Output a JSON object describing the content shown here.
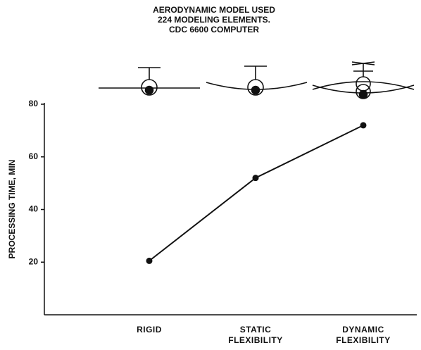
{
  "chart_data": {
    "type": "line",
    "title": [
      "AERODYNAMIC MODEL USED",
      "224 MODELING ELEMENTS.",
      "CDC 6600 COMPUTER"
    ],
    "y_label": "PROCESSING TIME, MIN",
    "categories": [
      "RIGID",
      "STATIC FLEXIBILITY",
      "DYNAMIC FLEXIBILITY"
    ],
    "values": [
      20.5,
      52,
      72
    ],
    "color": "#111111",
    "ylim": [
      0,
      80
    ],
    "yticks": [
      20,
      40,
      60,
      80
    ]
  }
}
